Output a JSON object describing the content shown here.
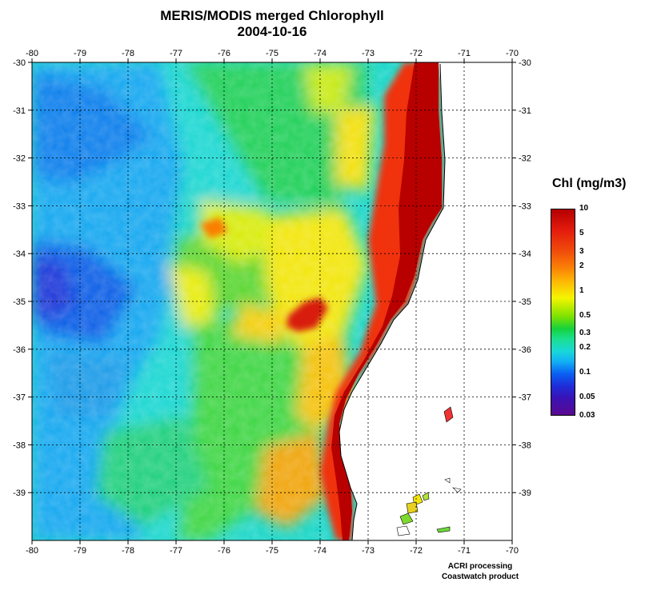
{
  "title": "MERIS/MODIS merged Chlorophyll",
  "date": "2004-10-16",
  "map": {
    "lon_range": [
      -80,
      -70
    ],
    "lat_range": [
      -40,
      -30
    ],
    "lon_ticks": [
      "-80",
      "-79",
      "-78",
      "-77",
      "-76",
      "-75",
      "-74",
      "-73",
      "-72",
      "-71",
      "-70"
    ],
    "lat_ticks": [
      "-30",
      "-31",
      "-32",
      "-33",
      "-34",
      "-35",
      "-36",
      "-37",
      "-38",
      "-39"
    ],
    "grid": "dotted",
    "land_color": "#ffffff",
    "coast_high_chl_color": "#b40000"
  },
  "legend": {
    "title": "Chl (mg/m3)",
    "labels": [
      "10",
      "5",
      "3",
      "2",
      "1",
      "0.5",
      "0.3",
      "0.2",
      "0.1",
      "0.05",
      "0.03"
    ],
    "colors": [
      "#b40000",
      "#e31b0d",
      "#f04a0b",
      "#fa7d06",
      "#f5f500",
      "#16d23c",
      "#19d8d8",
      "#12b0f5",
      "#0a60f2",
      "#3a12b4",
      "#5a0a90"
    ]
  },
  "credits": {
    "line1": "ACRI processing",
    "line2": "Coastwatch product"
  }
}
